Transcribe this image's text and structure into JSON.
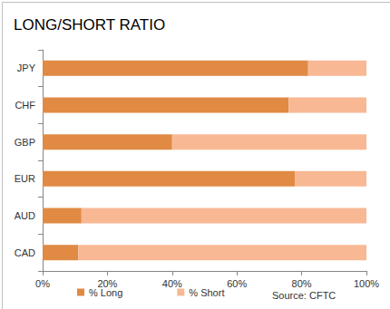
{
  "chart_data": {
    "type": "bar",
    "title": "LONG/SHORT RATIO",
    "orientation": "horizontal",
    "stacked": true,
    "grid": false,
    "legend": "bottom",
    "annotations": [
      "Source: CFTC"
    ],
    "categories": [
      "JPY",
      "CHF",
      "GBP",
      "EUR",
      "AUD",
      "CAD"
    ],
    "series": [
      {
        "name": "% Long",
        "color": "#e08a44",
        "values": [
          82,
          76,
          40,
          78,
          12,
          11
        ]
      },
      {
        "name": "% Short",
        "color": "#f8b894",
        "values": [
          18,
          24,
          60,
          22,
          88,
          89
        ]
      }
    ],
    "xlim": [
      0,
      100
    ],
    "xticks": [
      {
        "value": 0,
        "label": "0%"
      },
      {
        "value": 20,
        "label": "20%"
      },
      {
        "value": 40,
        "label": "40%"
      },
      {
        "value": 60,
        "label": "60%"
      },
      {
        "value": 80,
        "label": "80%"
      },
      {
        "value": 100,
        "label": "100%"
      }
    ]
  }
}
